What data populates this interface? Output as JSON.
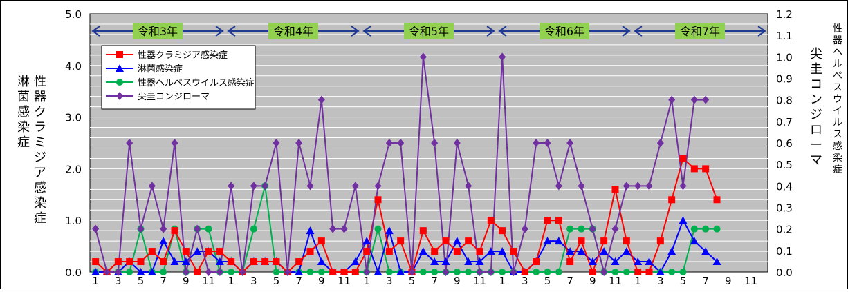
{
  "chart_data": {
    "type": "line",
    "x": [
      "1",
      "2",
      "3",
      "4",
      "5",
      "6",
      "7",
      "8",
      "9",
      "10",
      "11",
      "12",
      "1",
      "2",
      "3",
      "4",
      "5",
      "6",
      "7",
      "8",
      "9",
      "10",
      "11",
      "12",
      "1",
      "2",
      "3",
      "4",
      "5",
      "6",
      "7",
      "8",
      "9",
      "10",
      "11",
      "12",
      "1",
      "2",
      "3",
      "4",
      "5",
      "6",
      "7",
      "8",
      "9",
      "10",
      "11",
      "12",
      "1",
      "2",
      "3",
      "4",
      "5",
      "6",
      "7",
      "8",
      "9",
      "10",
      "11",
      "12"
    ],
    "x_tick_labels": [
      "1",
      "3",
      "5",
      "7",
      "9",
      "11",
      "1",
      "3",
      "5",
      "7",
      "9",
      "11",
      "1",
      "3",
      "5",
      "7",
      "9",
      "11",
      "1",
      "3",
      "5",
      "7",
      "9",
      "11",
      "1",
      "3",
      "5",
      "7",
      "9",
      "11"
    ],
    "era_labels": [
      "令和3年",
      "令和4年",
      "令和5年",
      "令和6年",
      "令和7年"
    ],
    "ylabel_left_a": "淋菌感染症",
    "ylabel_left_b": "性器クラミジア感染症",
    "ylabel_right_a": "尖圭コンジローマ",
    "ylabel_right_b": "性器ヘルペスウイルス感染症",
    "ylim_left": [
      0,
      5
    ],
    "yticks_left": [
      "0.0",
      "1.0",
      "2.0",
      "3.0",
      "4.0",
      "5.0"
    ],
    "ylim_right": [
      0,
      1.2
    ],
    "yticks_right": [
      "0.0",
      "0.1",
      "0.2",
      "0.3",
      "0.4",
      "0.5",
      "0.6",
      "0.7",
      "0.8",
      "0.9",
      "1.0",
      "1.1",
      "1.2"
    ],
    "grid": true,
    "legend_position": "top-left",
    "colors": {
      "red": "#ff0000",
      "blue": "#0000ff",
      "green": "#00b050",
      "purple": "#7030a0",
      "era_box": "#92d050",
      "arrow": "#1f3a93",
      "plot_bg": "#c0c0c0"
    },
    "series": [
      {
        "name": "性器クラミジア感染症",
        "axis": "left",
        "color": "#ff0000",
        "marker": "square",
        "values": [
          0.2,
          0,
          0.2,
          0.2,
          0.2,
          0.4,
          0.2,
          0.8,
          0.4,
          0,
          0.4,
          0.4,
          0.2,
          0,
          0.2,
          0.2,
          0.2,
          0,
          0.2,
          0.4,
          0.6,
          0,
          0,
          0,
          0.4,
          1.4,
          0.4,
          0.6,
          0,
          0.8,
          0.4,
          0.6,
          0.4,
          0.6,
          0.4,
          1.0,
          0.8,
          0.4,
          0,
          0.2,
          1.0,
          1.0,
          0.2,
          0.6,
          0,
          0.6,
          1.6,
          0.6,
          0,
          0,
          0.6,
          1.4,
          2.2,
          2.0,
          2.0,
          1.4,
          null,
          null,
          null,
          null
        ]
      },
      {
        "name": "淋菌感染症",
        "axis": "left",
        "color": "#0000ff",
        "marker": "triangle",
        "values": [
          0,
          0,
          0,
          0.2,
          0,
          0,
          0.6,
          0.2,
          0.2,
          0.4,
          0.4,
          0.2,
          0.2,
          0,
          0.2,
          0.2,
          0.2,
          0,
          0,
          0.8,
          0.2,
          0,
          0,
          0.2,
          0.6,
          0,
          0.8,
          0,
          0,
          0.4,
          0.2,
          0.2,
          0.6,
          0.2,
          0.2,
          0.4,
          0.4,
          0,
          0,
          0.2,
          0.6,
          0.6,
          0.4,
          0.4,
          0.2,
          0.4,
          0.2,
          0.4,
          0.2,
          0.2,
          0,
          0.4,
          1.0,
          0.6,
          0.4,
          0.2,
          null,
          null,
          null,
          null
        ]
      },
      {
        "name": "性器ヘルペスウイルス感染症",
        "axis": "right",
        "color": "#00b050",
        "marker": "circle",
        "values": [
          0,
          0,
          0,
          0,
          0.2,
          0,
          0,
          0.2,
          0,
          0.2,
          0.2,
          0,
          0,
          0,
          0.2,
          0.4,
          0,
          0,
          0,
          0,
          0,
          0,
          0,
          0,
          0,
          0.2,
          0,
          0,
          0,
          0,
          0,
          0,
          0,
          0,
          0,
          0,
          0,
          0,
          0,
          0,
          0,
          0,
          0.2,
          0.2,
          0.2,
          0,
          0,
          0,
          0,
          0,
          0,
          0,
          0,
          0.2,
          0.2,
          0.2,
          null,
          null,
          null,
          null
        ]
      },
      {
        "name": "尖圭コンジローマ",
        "axis": "right",
        "color": "#7030a0",
        "marker": "diamond",
        "values": [
          0.2,
          0,
          0,
          0.6,
          0.2,
          0.4,
          0.2,
          0.6,
          0,
          0.2,
          0,
          0,
          0.4,
          0,
          0.4,
          0.4,
          0.6,
          0,
          0.6,
          0.4,
          0.8,
          0.2,
          0.2,
          0.4,
          0,
          0.4,
          0.6,
          0.6,
          0,
          1.0,
          0.6,
          0,
          0.6,
          0.4,
          0,
          0,
          1.0,
          0,
          0.2,
          0.6,
          0.6,
          0.4,
          0.6,
          0.4,
          0.2,
          0,
          0.2,
          0.4,
          0.4,
          0.4,
          0.6,
          0.8,
          0.4,
          0.8,
          0.8,
          null,
          null,
          null,
          null,
          null
        ]
      }
    ]
  }
}
